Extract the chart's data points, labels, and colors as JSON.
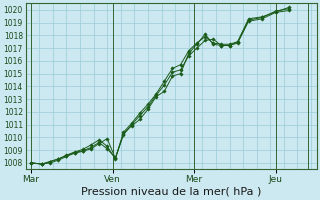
{
  "xlabel": "Pression niveau de la mer( hPa )",
  "bg_color": "#cce8f0",
  "plot_bg_color": "#cce8f0",
  "grid_color": "#99ccd9",
  "line_color": "#1a5c1a",
  "marker_color": "#1a5c1a",
  "border_color": "#336633",
  "ylim": [
    1007.5,
    1020.5
  ],
  "yticks": [
    1008,
    1009,
    1010,
    1011,
    1012,
    1013,
    1014,
    1015,
    1016,
    1017,
    1018,
    1019,
    1020
  ],
  "xtick_labels": [
    "Mar",
    "Ven",
    "Mer",
    "Jeu"
  ],
  "xtick_positions": [
    0,
    3.0,
    6.0,
    9.0
  ],
  "xvline_positions": [
    0,
    3.0,
    6.0,
    9.0
  ],
  "xlim": [
    -0.2,
    10.5
  ],
  "series": [
    [
      0.0,
      1008.0,
      0.4,
      1007.9,
      0.7,
      1008.1,
      1.0,
      1008.3,
      1.3,
      1008.6,
      1.6,
      1008.85,
      1.9,
      1009.05,
      2.2,
      1009.4,
      2.5,
      1009.8,
      2.8,
      1009.3,
      3.1,
      1008.3,
      3.4,
      1010.3,
      3.7,
      1010.9,
      4.0,
      1011.4,
      4.3,
      1012.2,
      4.6,
      1013.2,
      4.9,
      1013.6,
      5.2,
      1014.8,
      5.5,
      1015.0,
      5.8,
      1016.6,
      6.1,
      1017.3,
      6.4,
      1018.1,
      6.7,
      1017.3,
      7.0,
      1017.2,
      7.3,
      1017.2,
      7.6,
      1017.5,
      8.0,
      1019.2,
      8.5,
      1019.4,
      9.0,
      1019.9,
      9.5,
      1020.1
    ],
    [
      0.0,
      1008.0,
      0.4,
      1007.9,
      0.7,
      1008.1,
      1.0,
      1008.3,
      1.3,
      1008.55,
      1.6,
      1008.8,
      1.9,
      1008.95,
      2.2,
      1009.2,
      2.5,
      1009.6,
      2.8,
      1009.1,
      3.1,
      1008.4,
      3.4,
      1010.2,
      3.7,
      1011.0,
      4.0,
      1011.7,
      4.3,
      1012.4,
      4.6,
      1013.3,
      4.9,
      1014.1,
      5.2,
      1015.1,
      5.5,
      1015.3,
      5.8,
      1016.4,
      6.1,
      1017.0,
      6.4,
      1017.6,
      6.7,
      1017.7,
      7.0,
      1017.2,
      7.3,
      1017.2,
      7.6,
      1017.4,
      8.0,
      1019.1,
      8.5,
      1019.3,
      9.0,
      1019.8,
      9.5,
      1019.95
    ],
    [
      0.0,
      1008.0,
      0.4,
      1007.9,
      0.7,
      1008.0,
      1.0,
      1008.2,
      1.3,
      1008.5,
      1.6,
      1008.75,
      1.9,
      1008.9,
      2.2,
      1009.1,
      2.5,
      1009.5,
      2.8,
      1009.9,
      3.1,
      1008.35,
      3.4,
      1010.4,
      3.7,
      1011.1,
      4.0,
      1011.9,
      4.3,
      1012.6,
      4.6,
      1013.4,
      4.9,
      1014.4,
      5.2,
      1015.4,
      5.5,
      1015.7,
      5.8,
      1016.8,
      6.1,
      1017.4,
      6.4,
      1017.9,
      6.7,
      1017.4,
      7.0,
      1017.3,
      7.3,
      1017.3,
      7.6,
      1017.5,
      8.0,
      1019.3,
      8.5,
      1019.45,
      9.0,
      1019.85,
      9.5,
      1020.2
    ]
  ],
  "xlabel_fontsize": 8,
  "ytick_fontsize": 5.5,
  "xtick_fontsize": 6.5
}
